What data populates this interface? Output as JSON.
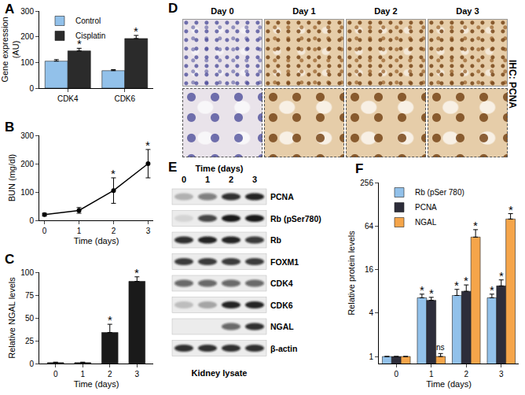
{
  "chart_data": [
    {
      "panel": "A",
      "type": "bar",
      "categories": [
        "CDK4",
        "CDK6"
      ],
      "y_label": [
        "Gene expression",
        "(AU)"
      ],
      "series": [
        {
          "name": "Control",
          "color": "#92c1ea",
          "values": [
            105,
            68
          ],
          "errors": [
            6,
            4
          ]
        },
        {
          "name": "Cisplatin",
          "color": "#2b2b2b",
          "values": [
            145,
            193
          ],
          "errors": [
            10,
            12
          ]
        }
      ],
      "ylim": [
        0,
        300
      ],
      "yticks": [
        0,
        100,
        200,
        300
      ],
      "grid": false,
      "legend": "top-left",
      "annotations": [
        {
          "text": "*",
          "category": "CDK4",
          "series": "Cisplatin"
        },
        {
          "text": "*",
          "category": "CDK6",
          "series": "Cisplatin"
        }
      ]
    },
    {
      "panel": "B",
      "type": "line",
      "x": [
        0,
        1,
        2,
        3
      ],
      "values": [
        20,
        35,
        105,
        200
      ],
      "errors": [
        5,
        10,
        45,
        50
      ],
      "color": "#000000",
      "marker": "circle",
      "line_style": "solid",
      "x_label": "Time (days)",
      "y_label": [
        "BUN (mg/dl)"
      ],
      "xlim": [
        -0.15,
        3.15
      ],
      "xticks": [
        0,
        1,
        2,
        3
      ],
      "ylim": [
        0,
        300
      ],
      "yticks": [
        0,
        100,
        200,
        300
      ],
      "grid": false,
      "annotations": [
        {
          "text": "*",
          "x": 2
        },
        {
          "text": "*",
          "x": 3
        }
      ]
    },
    {
      "panel": "C",
      "type": "bar",
      "x": [
        0,
        1,
        2,
        3
      ],
      "values": [
        1,
        1,
        34,
        90
      ],
      "errors": [
        0.5,
        0.5,
        9,
        5
      ],
      "color": "#1a1a1a",
      "x_label": "Time (days)",
      "y_label": [
        "Relative NGAL levels"
      ],
      "xlim": [
        -0.6,
        3.6
      ],
      "xticks": [
        0,
        1,
        2,
        3
      ],
      "ylim": [
        0,
        100
      ],
      "yticks": [
        0,
        25,
        50,
        75,
        100
      ],
      "grid": false,
      "annotations": [
        {
          "text": "*",
          "x": 2
        },
        {
          "text": "*",
          "x": 3
        }
      ]
    },
    {
      "panel": "F",
      "type": "bar",
      "x": [
        0,
        1,
        2,
        3
      ],
      "log": "y",
      "x_label": "Time (days)",
      "y_label": [
        "Relative protein levels"
      ],
      "series": [
        {
          "name": "Rb (pSer 780)",
          "color": "#92c1ea",
          "values": [
            1,
            6.5,
            7,
            6.5
          ],
          "errors": [
            0,
            0.8,
            1.5,
            0.8
          ]
        },
        {
          "name": "PCNA",
          "color": "#2d2d3a",
          "values": [
            1,
            6,
            8,
            9.5
          ],
          "errors": [
            0,
            0.6,
            1.8,
            2
          ]
        },
        {
          "name": "NGAL",
          "color": "#f5a54a",
          "values": [
            1,
            1,
            45,
            80
          ],
          "errors": [
            0,
            0.1,
            12,
            15
          ]
        }
      ],
      "xlim": [
        -0.5,
        3.5
      ],
      "xticks": [
        0,
        1,
        2,
        3
      ],
      "ylim": [
        0.8,
        256
      ],
      "yticks": [
        1,
        4,
        16,
        64,
        256
      ],
      "grid": false,
      "legend": "top-left",
      "annotations": [
        {
          "text": "*",
          "x": 1,
          "series": "Rb (pSer 780)"
        },
        {
          "text": "*",
          "x": 1,
          "series": "PCNA"
        },
        {
          "text": "ns",
          "x": 1,
          "series": "NGAL"
        },
        {
          "text": "*",
          "x": 2,
          "series": "Rb (pSer 780)"
        },
        {
          "text": "*",
          "x": 2,
          "series": "PCNA"
        },
        {
          "text": "*",
          "x": 2,
          "series": "NGAL"
        },
        {
          "text": "*",
          "x": 3,
          "series": "Rb (pSer 780)"
        },
        {
          "text": "*",
          "x": 3,
          "series": "PCNA"
        },
        {
          "text": "*",
          "x": 3,
          "series": "NGAL"
        }
      ]
    }
  ],
  "ihc": {
    "panel": "D",
    "columns": [
      "Day 0",
      "Day 1",
      "Day 2",
      "Day 3"
    ],
    "label": "IHC: PCNA"
  },
  "western_blot": {
    "panel": "E",
    "header": "Time (days)",
    "lanes": [
      "0",
      "1",
      "2",
      "3"
    ],
    "rows": [
      {
        "label": "PCNA",
        "bands": [
          0.25,
          0.5,
          0.85,
          0.9
        ]
      },
      {
        "label": "Rb (pSer780)",
        "bands": [
          0.1,
          0.75,
          0.95,
          0.95
        ]
      },
      {
        "label": "Rb",
        "bands": [
          0.85,
          0.9,
          0.9,
          0.8
        ]
      },
      {
        "label": "FOXM1",
        "bands": [
          0.8,
          0.8,
          0.8,
          0.8
        ]
      },
      {
        "label": "CDK4",
        "bands": [
          0.6,
          0.6,
          0.6,
          0.6
        ]
      },
      {
        "label": "CDK6",
        "bands": [
          0.2,
          0.3,
          0.9,
          0.9
        ]
      },
      {
        "label": "NGAL",
        "bands": [
          0,
          0,
          0.6,
          0.85
        ]
      },
      {
        "label": "β-actin",
        "bands": [
          0.85,
          0.85,
          0.85,
          0.85
        ]
      }
    ],
    "footer": "Kidney lysate"
  }
}
